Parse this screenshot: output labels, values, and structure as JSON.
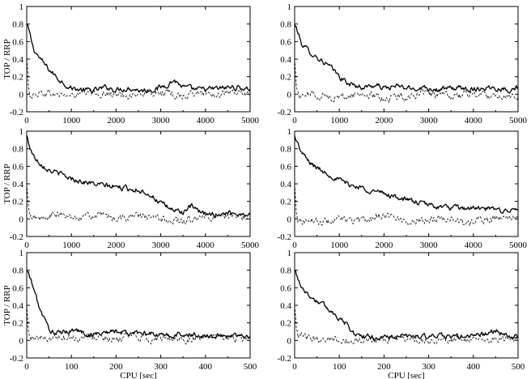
{
  "chart_data": [
    {
      "type": "line",
      "ylabel": "TOP / RRP",
      "xlabel": "",
      "xlim": [
        0,
        5000
      ],
      "ylim": [
        -0.2,
        1
      ],
      "xticks": [
        "0",
        "1000",
        "2000",
        "3000",
        "4000",
        "5000"
      ],
      "yticks": [
        "-0.2",
        "0",
        "0.2",
        "0.4",
        "0.6",
        "0.8",
        "1"
      ],
      "series": [
        {
          "style": "solid",
          "x": [
            0,
            50,
            150,
            300,
            500,
            700,
            900,
            1000,
            1200,
            1500,
            1800,
            2000,
            2300,
            2600,
            2900,
            3100,
            3300,
            3500,
            3800,
            4200,
            4600,
            5000
          ],
          "y": [
            0.8,
            0.72,
            0.52,
            0.4,
            0.28,
            0.18,
            0.1,
            0.07,
            0.05,
            0.04,
            0.08,
            0.05,
            0.07,
            0.04,
            0.06,
            0.1,
            0.16,
            0.08,
            0.05,
            0.06,
            0.08,
            0.06
          ]
        },
        {
          "style": "dashed",
          "x": [
            0,
            40,
            80,
            150,
            300,
            600,
            1000,
            1500,
            2000,
            2500,
            3000,
            3500,
            4000,
            4500,
            5000
          ],
          "y": [
            0.4,
            0.1,
            0.0,
            -0.02,
            0.02,
            0.0,
            -0.02,
            0.02,
            -0.01,
            0.0,
            0.02,
            -0.02,
            0.01,
            0.0,
            0.01
          ]
        }
      ]
    },
    {
      "type": "line",
      "ylabel": "",
      "xlabel": "",
      "xlim": [
        0,
        5000
      ],
      "ylim": [
        -0.2,
        1
      ],
      "xticks": [
        "0",
        "1000",
        "2000",
        "3000",
        "4000",
        "5000"
      ],
      "yticks": [
        "-0.2",
        "0",
        "0.2",
        "0.4",
        "0.6",
        "0.8",
        "1"
      ],
      "series": [
        {
          "style": "solid",
          "x": [
            0,
            50,
            150,
            300,
            500,
            700,
            900,
            1000,
            1200,
            1500,
            1800,
            2000,
            2300,
            2600,
            2900,
            3200,
            3600,
            4000,
            4400,
            4800,
            5000
          ],
          "y": [
            0.8,
            0.74,
            0.58,
            0.5,
            0.42,
            0.35,
            0.26,
            0.2,
            0.12,
            0.08,
            0.1,
            0.07,
            0.09,
            0.06,
            0.08,
            0.05,
            0.07,
            0.06,
            0.08,
            0.05,
            0.08
          ]
        },
        {
          "style": "dashed",
          "x": [
            0,
            40,
            80,
            150,
            300,
            600,
            1000,
            1500,
            2000,
            2500,
            3000,
            3500,
            4000,
            4500,
            5000
          ],
          "y": [
            0.4,
            0.1,
            0.0,
            -0.03,
            0.01,
            -0.02,
            -0.04,
            0.01,
            -0.05,
            -0.02,
            0.0,
            -0.03,
            0.01,
            -0.02,
            0.0
          ]
        }
      ]
    },
    {
      "type": "line",
      "ylabel": "TOP / RRP",
      "xlabel": "",
      "xlim": [
        0,
        5000
      ],
      "ylim": [
        -0.2,
        1
      ],
      "xticks": [
        "0",
        "1000",
        "2000",
        "3000",
        "4000",
        "5000"
      ],
      "yticks": [
        "-0.2",
        "0",
        "0.2",
        "0.4",
        "0.6",
        "0.8",
        "1"
      ],
      "series": [
        {
          "style": "solid",
          "x": [
            0,
            50,
            150,
            300,
            500,
            800,
            1000,
            1300,
            1600,
            1900,
            2200,
            2500,
            2700,
            2900,
            3100,
            3300,
            3500,
            3700,
            3900,
            4200,
            4500,
            4800,
            5000
          ],
          "y": [
            0.95,
            0.85,
            0.72,
            0.64,
            0.56,
            0.5,
            0.46,
            0.42,
            0.39,
            0.37,
            0.35,
            0.33,
            0.3,
            0.22,
            0.14,
            0.1,
            0.08,
            0.14,
            0.06,
            0.05,
            0.07,
            0.06,
            0.05
          ]
        },
        {
          "style": "dashed",
          "x": [
            0,
            40,
            80,
            150,
            300,
            600,
            1000,
            1500,
            2000,
            2500,
            3000,
            3500,
            4000,
            4500,
            5000
          ],
          "y": [
            0.4,
            0.1,
            0.0,
            0.02,
            -0.01,
            0.05,
            0.02,
            0.04,
            0.01,
            0.03,
            0.0,
            -0.03,
            0.02,
            0.01,
            0.04
          ]
        }
      ]
    },
    {
      "type": "line",
      "ylabel": "",
      "xlabel": "",
      "xlim": [
        0,
        5000
      ],
      "ylim": [
        -0.2,
        1
      ],
      "xticks": [
        "0",
        "1000",
        "2000",
        "3000",
        "4000",
        "5000"
      ],
      "yticks": [
        "-0.2",
        "0",
        "0.2",
        "0.4",
        "0.6",
        "0.8",
        "1"
      ],
      "series": [
        {
          "style": "solid",
          "x": [
            0,
            50,
            150,
            300,
            500,
            800,
            1000,
            1300,
            1600,
            1900,
            2200,
            2500,
            2800,
            3100,
            3400,
            3700,
            4000,
            4300,
            4600,
            5000
          ],
          "y": [
            0.95,
            0.88,
            0.76,
            0.66,
            0.58,
            0.5,
            0.44,
            0.38,
            0.34,
            0.3,
            0.26,
            0.22,
            0.18,
            0.15,
            0.13,
            0.12,
            0.12,
            0.11,
            0.1,
            0.1
          ]
        },
        {
          "style": "dashed",
          "x": [
            0,
            40,
            80,
            150,
            300,
            600,
            1000,
            1500,
            2000,
            2500,
            3000,
            3500,
            3800,
            4000,
            4500,
            5000
          ],
          "y": [
            0.4,
            0.1,
            0.0,
            -0.03,
            -0.02,
            -0.04,
            -0.01,
            -0.03,
            0.06,
            -0.03,
            0.0,
            0.02,
            -0.07,
            -0.02,
            0.0,
            0.03
          ]
        }
      ]
    },
    {
      "type": "line",
      "ylabel": "TOP / RRP",
      "xlabel": "CPU [sec]",
      "xlim": [
        0,
        500
      ],
      "ylim": [
        -0.2,
        1
      ],
      "xticks": [
        "0",
        "100",
        "200",
        "300",
        "400",
        "500"
      ],
      "yticks": [
        "-0.2",
        "0",
        "0.2",
        "0.4",
        "0.6",
        "0.8",
        "1"
      ],
      "series": [
        {
          "style": "solid",
          "x": [
            0,
            5,
            15,
            30,
            45,
            55,
            70,
            90,
            110,
            140,
            170,
            200,
            230,
            260,
            290,
            320,
            350,
            380,
            410,
            440,
            470,
            500
          ],
          "y": [
            0.8,
            0.75,
            0.6,
            0.35,
            0.18,
            0.1,
            0.08,
            0.1,
            0.12,
            0.06,
            0.09,
            0.1,
            0.08,
            0.1,
            0.06,
            0.05,
            0.07,
            0.06,
            0.05,
            0.05,
            0.06,
            0.05
          ]
        },
        {
          "style": "dashed",
          "x": [
            0,
            4,
            8,
            15,
            40,
            80,
            120,
            160,
            200,
            240,
            280,
            320,
            360,
            400,
            440,
            480,
            500
          ],
          "y": [
            0.4,
            0.1,
            0.0,
            0.04,
            0.02,
            0.05,
            0.03,
            0.06,
            0.02,
            0.04,
            0.01,
            0.03,
            0.02,
            0.04,
            0.03,
            0.02,
            0.03
          ]
        }
      ]
    },
    {
      "type": "line",
      "ylabel": "",
      "xlabel": "CPU [sec]",
      "xlim": [
        0,
        500
      ],
      "ylim": [
        -0.2,
        1
      ],
      "xticks": [
        "0",
        "100",
        "200",
        "300",
        "400",
        "500"
      ],
      "yticks": [
        "-0.2",
        "0",
        "0.2",
        "0.4",
        "0.6",
        "0.8",
        "1"
      ],
      "series": [
        {
          "style": "solid",
          "x": [
            0,
            5,
            15,
            30,
            50,
            70,
            90,
            110,
            125,
            140,
            160,
            180,
            220,
            260,
            300,
            340,
            380,
            420,
            450,
            470,
            500
          ],
          "y": [
            0.8,
            0.74,
            0.62,
            0.52,
            0.45,
            0.38,
            0.3,
            0.22,
            0.12,
            0.06,
            0.04,
            0.03,
            0.04,
            0.05,
            0.04,
            0.05,
            0.04,
            0.06,
            0.12,
            0.05,
            0.04
          ]
        },
        {
          "style": "dashed",
          "x": [
            0,
            4,
            8,
            15,
            40,
            80,
            120,
            160,
            200,
            240,
            280,
            320,
            360,
            400,
            440,
            480,
            500
          ],
          "y": [
            0.4,
            0.1,
            0.0,
            0.05,
            0.02,
            0.03,
            -0.01,
            0.0,
            0.02,
            0.03,
            0.01,
            0.0,
            0.02,
            0.01,
            0.0,
            0.02,
            0.03
          ]
        }
      ]
    }
  ]
}
